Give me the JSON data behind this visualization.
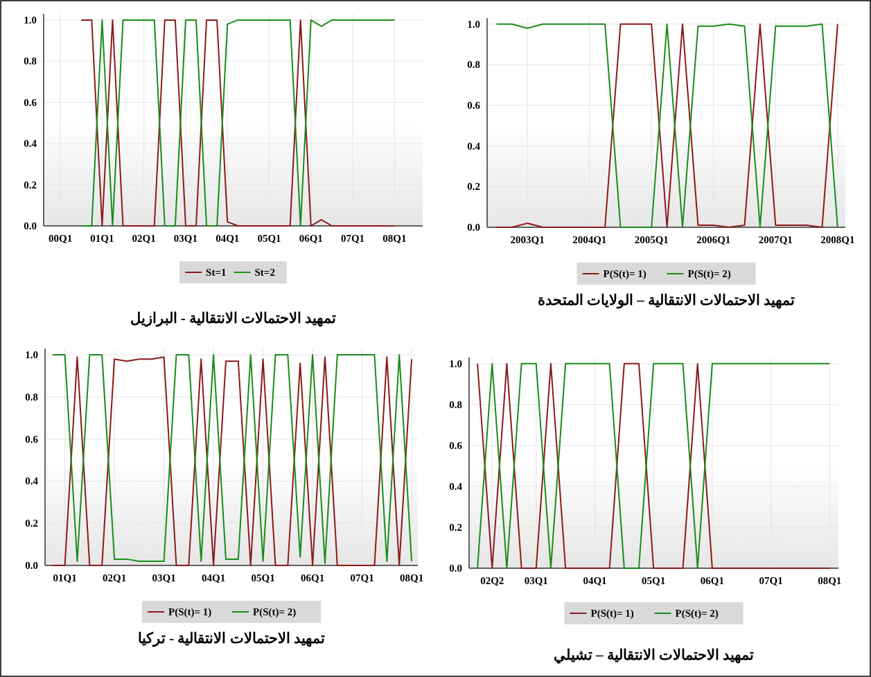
{
  "chart_data": [
    {
      "type": "line",
      "title": "تمهيد الاحتمالات الانتقالية - البرازيل",
      "categories": [
        "00Q1",
        null,
        null,
        null,
        "01Q1",
        null,
        null,
        null,
        "02Q1",
        null,
        null,
        null,
        "03Q1",
        null,
        null,
        null,
        "04Q1",
        null,
        null,
        null,
        "05Q1",
        null,
        null,
        null,
        "06Q1",
        null,
        null,
        null,
        "07Q1",
        null,
        null,
        null,
        "08Q1"
      ],
      "series": [
        {
          "name": "St=1",
          "color": "#8b1a1a",
          "values": [
            null,
            null,
            1,
            1,
            0,
            1,
            0,
            0,
            0,
            0,
            1,
            1,
            0,
            0,
            1,
            1,
            0.02,
            0,
            0,
            0,
            0,
            0,
            0,
            1,
            0,
            0.03,
            0,
            0,
            0,
            0,
            0,
            0,
            0
          ]
        },
        {
          "name": "St=2",
          "color": "#1a8c1a",
          "values": [
            null,
            null,
            0,
            0,
            1,
            0,
            1,
            1,
            1,
            1,
            0,
            0,
            1,
            1,
            0,
            0,
            0.98,
            1,
            1,
            1,
            1,
            1,
            1,
            0,
            1,
            0.97,
            1,
            1,
            1,
            1,
            1,
            1,
            1
          ]
        }
      ],
      "ylim": [
        0,
        1.03
      ],
      "yticks": [
        {
          "value": 0,
          "label": "0.0"
        },
        {
          "value": 0.2,
          "label": "0.2"
        },
        {
          "value": 0.4,
          "label": "0.4"
        },
        {
          "value": 0.6,
          "label": "0.6"
        },
        {
          "value": 0.8,
          "label": "0.8"
        },
        {
          "value": 1,
          "label": "1.0"
        }
      ],
      "grid": true,
      "legend": "bottom"
    },
    {
      "type": "line",
      "title": "تمهيد الاحتمالات الانتقالية – الولايات المتحدة",
      "categories": [
        null,
        null,
        "2003Q1",
        null,
        null,
        null,
        "2004Q1",
        null,
        null,
        null,
        "2005Q1",
        null,
        null,
        null,
        "2006Q1",
        null,
        null,
        null,
        "2007Q1",
        null,
        null,
        null,
        "2008Q1"
      ],
      "series": [
        {
          "name": "P(S(t)= 1)",
          "color": "#8b1a1a",
          "values": [
            0,
            0,
            0.02,
            0,
            0,
            0,
            0,
            0,
            1,
            1,
            1,
            0,
            1,
            0.01,
            0.01,
            0,
            0.01,
            1,
            0.01,
            0.01,
            0.01,
            0,
            1
          ]
        },
        {
          "name": "P(S(t)= 2)",
          "color": "#1a8c1a",
          "values": [
            1,
            1,
            0.98,
            1,
            1,
            1,
            1,
            1,
            0,
            0,
            0,
            1,
            0,
            0.99,
            0.99,
            1,
            0.99,
            0,
            0.99,
            0.99,
            0.99,
            1,
            0
          ]
        }
      ],
      "ylim": [
        0,
        1.03
      ],
      "yticks": [
        {
          "value": 0,
          "label": "0.0"
        },
        {
          "value": 0.2,
          "label": "0.2"
        },
        {
          "value": 0.4,
          "label": "0.4"
        },
        {
          "value": 0.6,
          "label": "0.6"
        },
        {
          "value": 0.8,
          "label": "0.8"
        },
        {
          "value": 1,
          "label": "1.0"
        }
      ],
      "grid": true,
      "legend": "bottom"
    },
    {
      "type": "line",
      "title": "تمهيد الاحتمالات الانتقالية - تركيا",
      "categories": [
        null,
        "01Q1",
        null,
        null,
        null,
        "02Q1",
        null,
        null,
        null,
        "03Q1",
        null,
        null,
        null,
        "04Q1",
        null,
        null,
        null,
        "05Q1",
        null,
        null,
        null,
        "06Q1",
        null,
        null,
        null,
        "07Q1",
        null,
        null,
        null,
        "08Q1"
      ],
      "series": [
        {
          "name": "P(S(t)= 1)",
          "color": "#8b1a1a",
          "values": [
            0,
            0,
            0.99,
            0,
            0,
            0.98,
            0.97,
            0.98,
            0.98,
            0.99,
            0,
            0,
            0.98,
            0,
            0.97,
            0.97,
            0,
            0.98,
            0,
            0,
            0.96,
            0,
            0.99,
            0,
            0,
            0,
            0,
            0.99,
            0,
            0.98
          ]
        },
        {
          "name": "P(S(t)= 2)",
          "color": "#1a8c1a",
          "values": [
            1,
            1,
            0.02,
            1,
            1,
            0.03,
            0.03,
            0.02,
            0.02,
            0.02,
            1,
            1,
            0.02,
            1,
            0.03,
            0.03,
            1,
            0.02,
            1,
            1,
            0.04,
            1,
            0.01,
            1,
            1,
            1,
            1,
            0.02,
            1,
            0.02
          ]
        }
      ],
      "ylim": [
        0,
        1.03
      ],
      "yticks": [
        {
          "value": 0,
          "label": "0.0"
        },
        {
          "value": 0.2,
          "label": "0.2"
        },
        {
          "value": 0.4,
          "label": "0.4"
        },
        {
          "value": 0.6,
          "label": "0.6"
        },
        {
          "value": 0.8,
          "label": "0.8"
        },
        {
          "value": 1,
          "label": "1.0"
        }
      ],
      "grid": true,
      "legend": "bottom"
    },
    {
      "type": "line",
      "title": "تمهيد الاحتمالات الانتقالية – تشيلي",
      "categories": [
        null,
        "02Q2",
        null,
        null,
        "03Q1",
        null,
        null,
        null,
        "04Q1",
        null,
        null,
        null,
        "05Q1",
        null,
        null,
        null,
        "06Q1",
        null,
        null,
        null,
        "07Q1",
        null,
        null,
        null,
        "08Q1"
      ],
      "series": [
        {
          "name": "P(S(t)= 1)",
          "color": "#8b1a1a",
          "values": [
            1,
            0,
            1,
            0,
            0,
            1,
            0,
            0,
            0,
            0,
            1,
            1,
            0,
            0,
            0,
            1,
            0,
            0,
            0,
            0,
            0,
            0,
            0,
            0,
            0
          ]
        },
        {
          "name": "P(S(t)= 2)",
          "color": "#1a8c1a",
          "values": [
            0,
            1,
            0,
            1,
            1,
            0,
            1,
            1,
            1,
            1,
            0,
            0,
            1,
            1,
            1,
            0,
            1,
            1,
            1,
            1,
            1,
            1,
            1,
            1,
            1
          ]
        }
      ],
      "ylim": [
        0,
        1.03
      ],
      "yticks": [
        {
          "value": 0,
          "label": "0.0"
        },
        {
          "value": 0.2,
          "label": "0.2"
        },
        {
          "value": 0.4,
          "label": "0.4"
        },
        {
          "value": 0.6,
          "label": "0.6"
        },
        {
          "value": 0.8,
          "label": "0.8"
        },
        {
          "value": 1,
          "label": "1.0"
        }
      ],
      "grid": true,
      "legend": "bottom"
    }
  ]
}
